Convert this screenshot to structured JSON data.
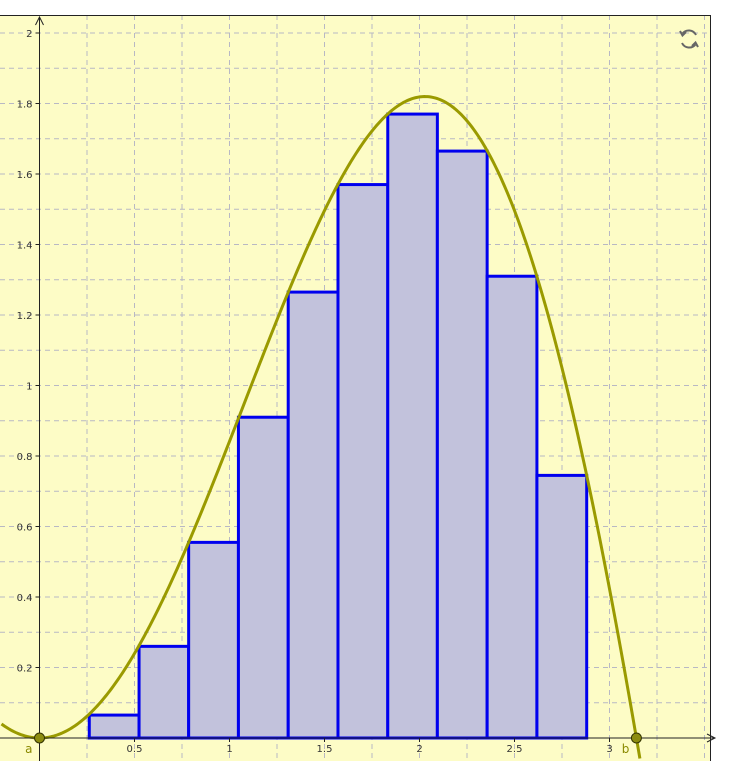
{
  "app": {
    "reset_icon": "refresh-icon"
  },
  "colors": {
    "background": "#fdfcc6",
    "grid": "#b8b8c4",
    "axis": "#222222",
    "curve": "#9a9a00",
    "bar_fill": "#c2c2dc",
    "bar_stroke": "#0000ee",
    "point_fill": "#8c8c10",
    "point_label": "#8a8a00"
  },
  "chart_data": {
    "type": "bar",
    "title": "",
    "xlabel": "",
    "ylabel": "",
    "xlim": [
      -0.2,
      3.54
    ],
    "ylim": [
      0,
      2.05
    ],
    "grid": true,
    "x_ticks": [
      {
        "value": 0.5,
        "label": "0.5"
      },
      {
        "value": 1,
        "label": "1"
      },
      {
        "value": 1.5,
        "label": "1.5"
      },
      {
        "value": 2,
        "label": "2"
      },
      {
        "value": 2.5,
        "label": "2.5"
      },
      {
        "value": 3,
        "label": "3"
      }
    ],
    "y_ticks": [
      {
        "value": 0.2,
        "label": "0.2"
      },
      {
        "value": 0.4,
        "label": "0.4"
      },
      {
        "value": 0.6,
        "label": "0.6"
      },
      {
        "value": 0.8,
        "label": "0.8"
      },
      {
        "value": 1,
        "label": "1"
      },
      {
        "value": 1.2,
        "label": "1.2"
      },
      {
        "value": 1.4,
        "label": "1.4"
      },
      {
        "value": 1.6,
        "label": "1.6"
      },
      {
        "value": 1.8,
        "label": "1.8"
      },
      {
        "value": 2,
        "label": "2"
      }
    ],
    "bars": [
      {
        "x0": 0.262,
        "x1": 0.524,
        "value": 0.065
      },
      {
        "x0": 0.524,
        "x1": 0.785,
        "value": 0.26
      },
      {
        "x0": 0.785,
        "x1": 1.047,
        "value": 0.555
      },
      {
        "x0": 1.047,
        "x1": 1.309,
        "value": 0.91
      },
      {
        "x0": 1.309,
        "x1": 1.571,
        "value": 1.265
      },
      {
        "x0": 1.571,
        "x1": 1.833,
        "value": 1.57
      },
      {
        "x0": 1.833,
        "x1": 2.094,
        "value": 1.77
      },
      {
        "x0": 2.094,
        "x1": 2.356,
        "value": 1.665
      },
      {
        "x0": 2.356,
        "x1": 2.618,
        "value": 1.31
      },
      {
        "x0": 2.618,
        "x1": 2.88,
        "value": 0.745
      }
    ],
    "curve": {
      "function": "f(x) = x·sin(x)",
      "x_range": [
        -0.2,
        3.16
      ]
    },
    "points": [
      {
        "name": "a",
        "x": 0,
        "y": 0
      },
      {
        "name": "b",
        "x": 3.1416,
        "y": 0
      }
    ]
  }
}
